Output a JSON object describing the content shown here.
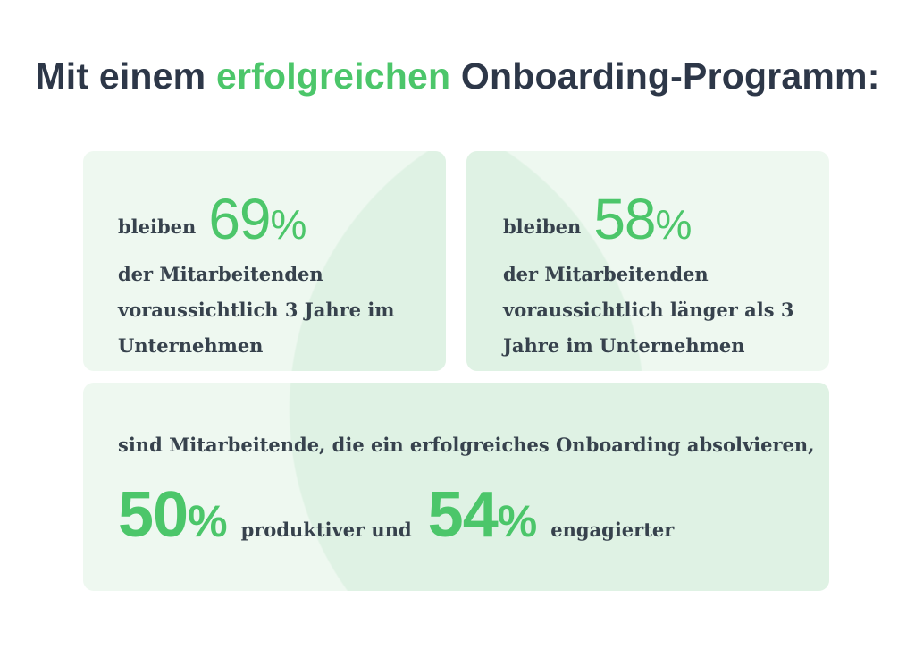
{
  "title": {
    "before": "Mit einem ",
    "highlight": "erfolgreichen",
    "after": " Onboarding-Programm:"
  },
  "colors": {
    "accent": "#4cc66a",
    "text": "#2f3a45",
    "card": "#eef8f0"
  },
  "card1": {
    "prefix": "bleiben",
    "number": "69",
    "pct": "%",
    "line1": "der Mitarbeitenden",
    "line2": "voraussichtlich 3 Jahre im",
    "line3": "Unternehmen"
  },
  "card2": {
    "prefix": "bleiben",
    "number": "58",
    "pct": "%",
    "line1": "der Mitarbeitenden",
    "line2": "voraussichtlich länger als 3",
    "line3": "Jahre im Unternehmen"
  },
  "card3": {
    "intro": "sind Mitarbeitende, die ein erfolgreiches Onboarding absolvieren,",
    "number1": "50",
    "pct": "%",
    "label1": "produktiver und",
    "number2": "54",
    "label2": "engagierter"
  }
}
